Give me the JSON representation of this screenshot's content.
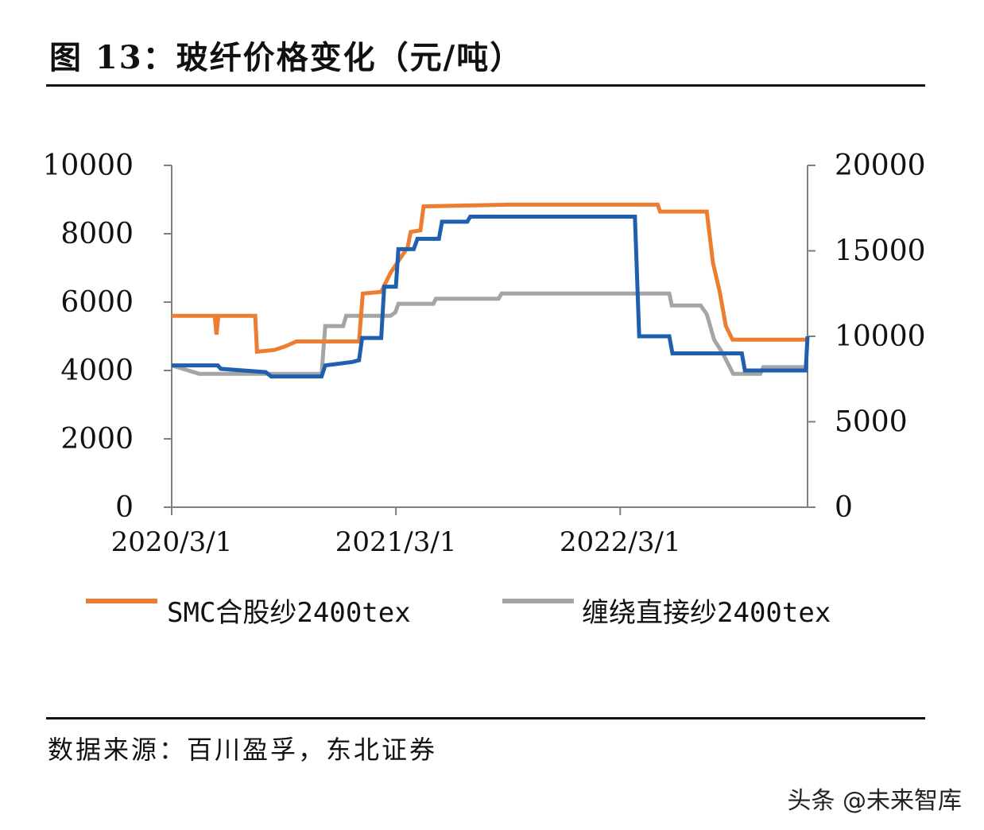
{
  "title": "图  13：玻纤价格变化（元/吨）",
  "source": "数据来源：百川盈孚，东北证券",
  "watermark": "头条 @未来智库",
  "chart_data": {
    "type": "line",
    "title": "图  13：玻纤价格变化（元/吨）",
    "x_ticks": [
      "2020/3/1",
      "2021/3/1",
      "2022/3/1"
    ],
    "x_range": [
      "2020-03-01",
      "2022-12-31"
    ],
    "y_left": {
      "ticks": [
        "0",
        "2000",
        "4000",
        "6000",
        "8000",
        "10000"
      ],
      "ylim": [
        0,
        10000
      ]
    },
    "y_right": {
      "ticks": [
        "0",
        "5000",
        "10000",
        "15000",
        "20000"
      ],
      "ylim": [
        0,
        20000
      ]
    },
    "legend_position": "bottom",
    "series": [
      {
        "name": "SMC合股纱2400tex",
        "axis": "left",
        "color": "#ED7D31",
        "points": [
          [
            "2020-03-01",
            5600
          ],
          [
            "2020-05-10",
            5600
          ],
          [
            "2020-05-13",
            5050
          ],
          [
            "2020-05-16",
            5600
          ],
          [
            "2020-07-15",
            5600
          ],
          [
            "2020-07-18",
            4550
          ],
          [
            "2020-08-15",
            4600
          ],
          [
            "2020-09-01",
            4700
          ],
          [
            "2020-09-20",
            4850
          ],
          [
            "2020-12-31",
            4850
          ],
          [
            "2021-01-06",
            6250
          ],
          [
            "2021-02-05",
            6300
          ],
          [
            "2021-02-20",
            6850
          ],
          [
            "2021-03-20",
            7600
          ],
          [
            "2021-03-25",
            8050
          ],
          [
            "2021-04-10",
            8100
          ],
          [
            "2021-04-15",
            8800
          ],
          [
            "2021-09-01",
            8850
          ],
          [
            "2022-05-01",
            8850
          ],
          [
            "2022-05-05",
            8650
          ],
          [
            "2022-07-20",
            8650
          ],
          [
            "2022-07-30",
            7150
          ],
          [
            "2022-08-10",
            6300
          ],
          [
            "2022-08-20",
            5300
          ],
          [
            "2022-08-31",
            4900
          ],
          [
            "2022-12-31",
            4900
          ]
        ]
      },
      {
        "name": "缠绕直接纱2400tex",
        "axis": "right",
        "color": "#A5A5A5",
        "points": [
          [
            "2020-03-01",
            8300
          ],
          [
            "2020-04-15",
            7800
          ],
          [
            "2020-10-31",
            7800
          ],
          [
            "2020-11-06",
            10600
          ],
          [
            "2020-12-05",
            10600
          ],
          [
            "2020-12-10",
            11200
          ],
          [
            "2021-02-20",
            11200
          ],
          [
            "2021-02-28",
            11400
          ],
          [
            "2021-03-05",
            11900
          ],
          [
            "2021-05-01",
            11900
          ],
          [
            "2021-05-05",
            12200
          ],
          [
            "2021-08-15",
            12200
          ],
          [
            "2021-08-20",
            12500
          ],
          [
            "2022-05-20",
            12500
          ],
          [
            "2022-05-24",
            11800
          ],
          [
            "2022-07-10",
            11800
          ],
          [
            "2022-07-20",
            11300
          ],
          [
            "2022-08-01",
            9800
          ],
          [
            "2022-08-15",
            9000
          ],
          [
            "2022-09-01",
            7800
          ],
          [
            "2022-10-15",
            7800
          ],
          [
            "2022-10-20",
            8200
          ],
          [
            "2022-12-31",
            8200
          ]
        ]
      },
      {
        "name": "",
        "axis": "right",
        "color": "#1F5FAD",
        "points": [
          [
            "2020-03-01",
            8300
          ],
          [
            "2020-05-15",
            8300
          ],
          [
            "2020-05-20",
            8100
          ],
          [
            "2020-08-01",
            7900
          ],
          [
            "2020-08-10",
            7650
          ],
          [
            "2020-10-31",
            7650
          ],
          [
            "2020-11-06",
            8300
          ],
          [
            "2020-12-20",
            8500
          ],
          [
            "2020-12-31",
            8600
          ],
          [
            "2021-01-05",
            9900
          ],
          [
            "2021-02-05",
            9900
          ],
          [
            "2021-02-10",
            12900
          ],
          [
            "2021-03-01",
            12900
          ],
          [
            "2021-03-05",
            15100
          ],
          [
            "2021-03-30",
            15100
          ],
          [
            "2021-04-05",
            15700
          ],
          [
            "2021-05-10",
            15700
          ],
          [
            "2021-05-15",
            16700
          ],
          [
            "2021-06-25",
            16700
          ],
          [
            "2021-06-30",
            17000
          ],
          [
            "2022-03-25",
            17000
          ],
          [
            "2022-04-01",
            10000
          ],
          [
            "2022-05-20",
            10000
          ],
          [
            "2022-05-25",
            9000
          ],
          [
            "2022-09-15",
            9000
          ],
          [
            "2022-09-20",
            8000
          ],
          [
            "2022-12-28",
            8000
          ],
          [
            "2022-12-31",
            10000
          ]
        ]
      }
    ]
  }
}
